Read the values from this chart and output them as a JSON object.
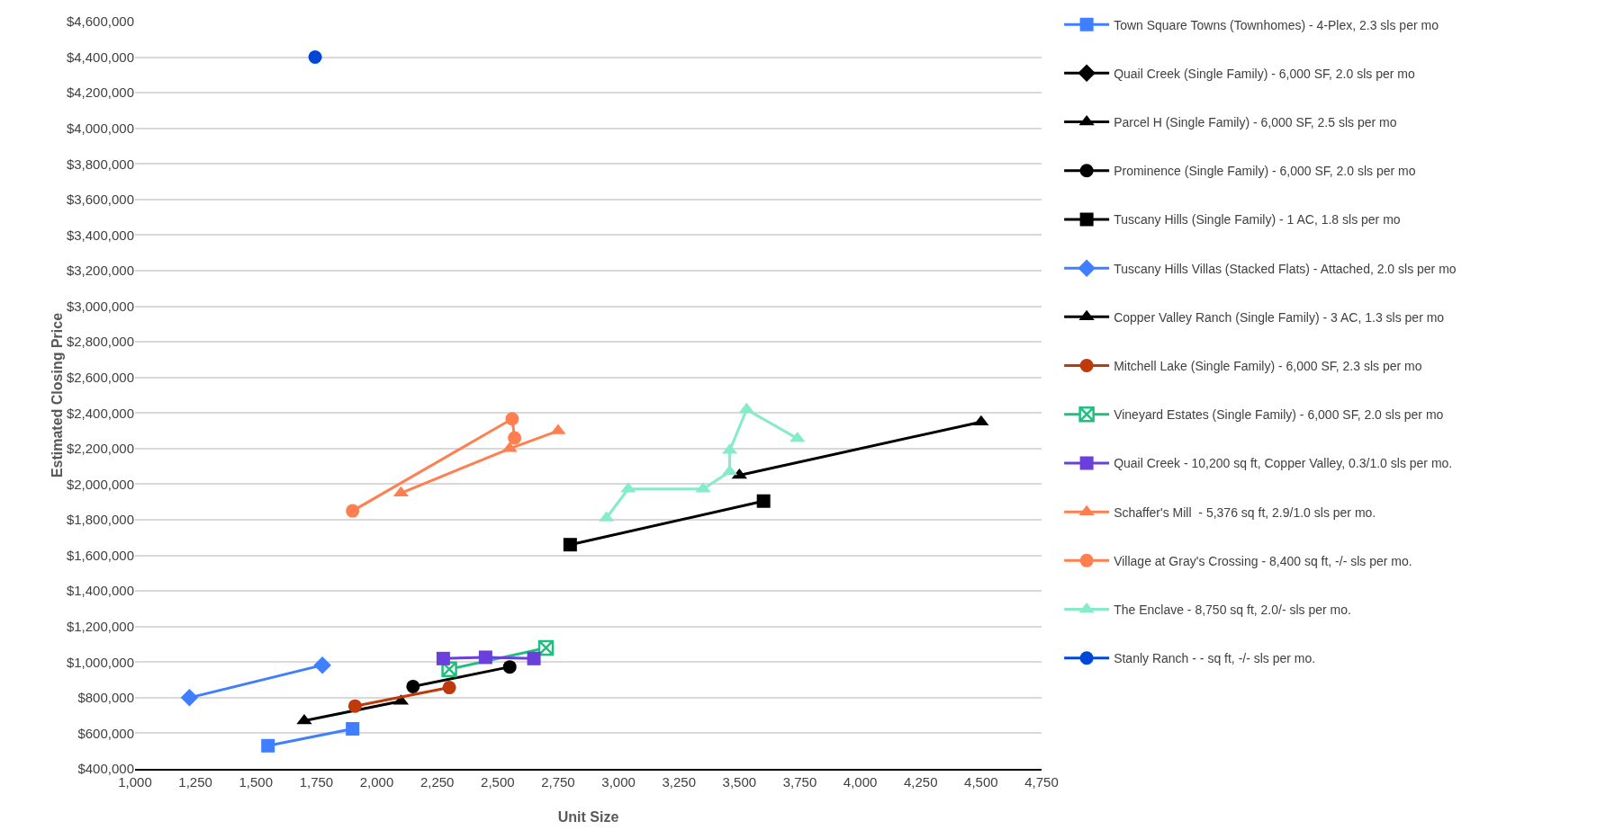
{
  "chart_data": {
    "type": "line",
    "xlabel": "Unit Size",
    "ylabel": "Estimated Closing Price",
    "xlim": [
      1000,
      4750
    ],
    "xticks": [
      {
        "value": 1000,
        "label": "1,000"
      },
      {
        "value": 1250,
        "label": "1,250"
      },
      {
        "value": 1500,
        "label": "1,500"
      },
      {
        "value": 1750,
        "label": "1,750"
      },
      {
        "value": 2000,
        "label": "2,000"
      },
      {
        "value": 2250,
        "label": "2,250"
      },
      {
        "value": 2500,
        "label": "2,500"
      },
      {
        "value": 2750,
        "label": "2,750"
      },
      {
        "value": 3000,
        "label": "3,000"
      },
      {
        "value": 3250,
        "label": "3,250"
      },
      {
        "value": 3500,
        "label": "3,500"
      },
      {
        "value": 3750,
        "label": "3,750"
      },
      {
        "value": 4000,
        "label": "4,000"
      },
      {
        "value": 4250,
        "label": "4,250"
      },
      {
        "value": 4500,
        "label": "4,500"
      },
      {
        "value": 4750,
        "label": "4,750"
      }
    ],
    "ylim": [
      400000,
      4600000
    ],
    "yticks": [
      {
        "value": 400000,
        "label": "$400,000"
      },
      {
        "value": 600000,
        "label": "$600,000"
      },
      {
        "value": 800000,
        "label": "$800,000"
      },
      {
        "value": 1000000,
        "label": "$1,000,000"
      },
      {
        "value": 1200000,
        "label": "$1,200,000"
      },
      {
        "value": 1400000,
        "label": "$1,400,000"
      },
      {
        "value": 1600000,
        "label": "$1,600,000"
      },
      {
        "value": 1800000,
        "label": "$1,800,000"
      },
      {
        "value": 2000000,
        "label": "$2,000,000"
      },
      {
        "value": 2200000,
        "label": "$2,200,000"
      },
      {
        "value": 2400000,
        "label": "$2,400,000"
      },
      {
        "value": 2600000,
        "label": "$2,600,000"
      },
      {
        "value": 2800000,
        "label": "$2,800,000"
      },
      {
        "value": 3000000,
        "label": "$3,000,000"
      },
      {
        "value": 3200000,
        "label": "$3,200,000"
      },
      {
        "value": 3400000,
        "label": "$3,400,000"
      },
      {
        "value": 3600000,
        "label": "$3,600,000"
      },
      {
        "value": 3800000,
        "label": "$3,800,000"
      },
      {
        "value": 4000000,
        "label": "$4,000,000"
      },
      {
        "value": 4200000,
        "label": "$4,200,000"
      },
      {
        "value": 4400000,
        "label": "$4,400,000"
      },
      {
        "value": 4600000,
        "label": "$4,600,000"
      }
    ],
    "grid": "y",
    "legend": "right",
    "line_style": "solid",
    "series": [
      {
        "name": "Town Square Towns (Townhomes) - 4-Plex, 2.3 sls per mo",
        "color": "#3f7fff",
        "marker": "square",
        "x": [
          1550,
          1900
        ],
        "values": [
          530000,
          625000
        ]
      },
      {
        "name": "Quail Creek (Single Family) - 6,000 SF, 2.0 sls per mo",
        "color": "#000000",
        "marker": "diamond",
        "x": [
          null
        ],
        "values": [
          null
        ]
      },
      {
        "name": "Parcel H (Single Family) - 6,000 SF, 2.5 sls per mo",
        "color": "#000000",
        "marker": "triangle",
        "x": [
          1700,
          2100
        ],
        "values": [
          670000,
          780000
        ]
      },
      {
        "name": "Prominence (Single Family) - 6,000 SF, 2.0 sls per mo",
        "color": "#000000",
        "marker": "circle",
        "x": [
          2150,
          2550
        ],
        "values": [
          863000,
          973000
        ]
      },
      {
        "name": "Tuscany Hills (Single Family) - 1 AC, 1.8 sls per mo",
        "color": "#000000",
        "marker": "square",
        "x": [
          2800,
          3600
        ],
        "values": [
          1660000,
          1905000
        ]
      },
      {
        "name": "Tuscany Hills Villas (Stacked Flats) - Attached, 2.0 sls per mo",
        "color": "#3f7fff",
        "marker": "diamond",
        "x": [
          1225,
          1775
        ],
        "values": [
          800000,
          983000
        ]
      },
      {
        "name": "Copper Valley Ranch (Single Family) - 3 AC, 1.3 sls per mo",
        "color": "#000000",
        "marker": "triangle",
        "x": [
          3500,
          4500
        ],
        "values": [
          2050000,
          2350000
        ]
      },
      {
        "name": "Mitchell Lake (Single Family) - 6,000 SF, 2.3 sls per mo",
        "color": "#c0390b",
        "marker": "circle",
        "x": [
          1910,
          2300
        ],
        "values": [
          753000,
          857000
        ]
      },
      {
        "name": "Vineyard Estates (Single Family) - 6,000 SF, 2.0 sls per mo",
        "color": "#1fbf80",
        "marker": "cross",
        "x": [
          2300,
          2700
        ],
        "values": [
          960000,
          1080000
        ]
      },
      {
        "name": "Quail Creek - 10,200 sq ft, Copper Valley, 0.3/1.0 sls per mo.",
        "color": "#6a3fdc",
        "marker": "square",
        "x": [
          2275,
          2450,
          2650
        ],
        "values": [
          1020000,
          1027000,
          1020000
        ]
      },
      {
        "name": "Schaffer's Mill  - 5,376 sq ft, 2.9/1.0 sls per mo.",
        "color": "#ff7f50",
        "marker": "triangle",
        "x": [
          2100,
          2550,
          2750
        ],
        "values": [
          1950000,
          2200000,
          2300000
        ]
      },
      {
        "name": "Village at Gray's Crossing - 8,400 sq ft, -/- sls per mo.",
        "color": "#ff7f50",
        "marker": "circle",
        "x": [
          1900,
          2560,
          2570
        ],
        "values": [
          1850000,
          2367000,
          2260000
        ]
      },
      {
        "name": "The Enclave - 8,750 sq ft, 2.0/- sls per mo.",
        "color": "#86ecc8",
        "marker": "triangle",
        "x": [
          2950,
          3040,
          3350,
          3460,
          3460,
          3530,
          3740
        ],
        "values": [
          1810000,
          1973000,
          1973000,
          2070000,
          2190000,
          2420000,
          2257000
        ]
      },
      {
        "name": "Stanly Ranch - - sq ft, -/- sls per mo.",
        "color": "#0047d8",
        "marker": "circle",
        "x": [
          1745
        ],
        "values": [
          4400000
        ]
      }
    ]
  }
}
